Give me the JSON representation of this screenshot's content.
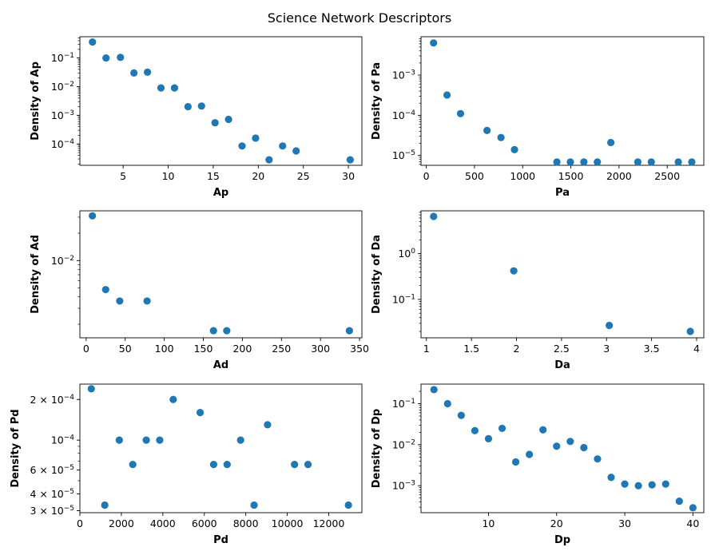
{
  "figure": {
    "title": "Science Network Descriptors"
  },
  "chart_data": [
    {
      "id": "ap",
      "type": "scatter",
      "xlabel": "Ap",
      "ylabel": "Density of Ap",
      "yscale": "log",
      "xlim": [
        0.2,
        31.5
      ],
      "ylim": [
        1.8e-05,
        0.55
      ],
      "xticks": [
        5,
        10,
        15,
        20,
        25,
        30
      ],
      "yticks": [
        {
          "value": 0.1,
          "label": "10^-1"
        },
        {
          "value": 0.01,
          "label": "10^-2"
        },
        {
          "value": 0.001,
          "label": "10^-3"
        },
        {
          "value": 0.0001,
          "label": "10^-4"
        }
      ],
      "x": [
        1.6,
        3.1,
        4.7,
        6.2,
        7.7,
        9.2,
        10.7,
        12.2,
        13.7,
        15.2,
        16.7,
        18.2,
        19.7,
        21.2,
        22.7,
        24.2,
        30.2
      ],
      "y": [
        0.36,
        0.1,
        0.105,
        0.03,
        0.032,
        0.009,
        0.009,
        0.002,
        0.0021,
        0.00055,
        0.00072,
        8.5e-05,
        0.00016,
        2.8e-05,
        8.5e-05,
        5.7e-05,
        2.8e-05
      ]
    },
    {
      "id": "pa",
      "type": "scatter",
      "xlabel": "Pa",
      "ylabel": "Density of Pa",
      "yscale": "log",
      "xlim": [
        -55,
        2880
      ],
      "ylim": [
        5.7e-06,
        0.009
      ],
      "xticks": [
        0,
        500,
        1000,
        1500,
        2000,
        2500
      ],
      "yticks": [
        {
          "value": 0.001,
          "label": "10^-3"
        },
        {
          "value": 0.0001,
          "label": "10^-4"
        },
        {
          "value": 1e-05,
          "label": "10^-5"
        }
      ],
      "x": [
        75,
        215,
        355,
        630,
        775,
        915,
        1355,
        1495,
        1635,
        1775,
        1915,
        2195,
        2335,
        2615,
        2755
      ],
      "y": [
        0.0063,
        0.00032,
        0.00011,
        4.2e-05,
        2.8e-05,
        1.4e-05,
        6.9e-06,
        6.9e-06,
        6.9e-06,
        6.9e-06,
        2.1e-05,
        6.9e-06,
        6.9e-06,
        6.9e-06,
        6.9e-06
      ]
    },
    {
      "id": "ad",
      "type": "scatter",
      "xlabel": "Ad",
      "ylabel": "Density of Ad",
      "yscale": "log",
      "xlim": [
        -8,
        353
      ],
      "ylim": [
        0.00142,
        0.0352
      ],
      "xticks": [
        0,
        50,
        100,
        150,
        200,
        250,
        300,
        350
      ],
      "yticks": [
        {
          "value": 0.01,
          "label": "10^-2"
        }
      ],
      "x": [
        8,
        25,
        43,
        78,
        163,
        180,
        337
      ],
      "y": [
        0.031,
        0.0048,
        0.0036,
        0.0036,
        0.0017,
        0.0017,
        0.0017
      ]
    },
    {
      "id": "da",
      "type": "scatter",
      "xlabel": "Da",
      "ylabel": "Density of Da",
      "yscale": "log",
      "xlim": [
        0.94,
        4.08
      ],
      "ylim": [
        0.0145,
        8.6
      ],
      "xticks": [
        1.0,
        1.5,
        2.0,
        2.5,
        3.0,
        3.5,
        4.0
      ],
      "yticks": [
        {
          "value": 1,
          "label": "10^0"
        },
        {
          "value": 0.1,
          "label": "10^-1"
        }
      ],
      "x": [
        1.08,
        1.97,
        3.03,
        3.93
      ],
      "y": [
        6.5,
        0.42,
        0.027,
        0.02
      ]
    },
    {
      "id": "pd",
      "type": "scatter",
      "xlabel": "Pd",
      "ylabel": "Density of Pd",
      "yscale": "log",
      "xlim": [
        0,
        13600
      ],
      "ylim": [
        2.9e-05,
        0.00026
      ],
      "xticks": [
        0,
        2000,
        4000,
        6000,
        8000,
        10000,
        12000
      ],
      "yticks": [
        {
          "value": 0.0002,
          "label": "2 × 10^-4"
        },
        {
          "value": 0.0001,
          "label": "10^-4"
        },
        {
          "value": 6e-05,
          "label": "6 × 10^-5"
        },
        {
          "value": 4e-05,
          "label": "4 × 10^-5"
        },
        {
          "value": 3e-05,
          "label": "3 × 10^-5"
        }
      ],
      "x": [
        550,
        1200,
        1900,
        2550,
        3200,
        3850,
        4500,
        5800,
        6450,
        7100,
        7750,
        8400,
        9050,
        10350,
        11000,
        12950
      ],
      "y": [
        0.00024,
        3.3e-05,
        0.0001,
        6.6e-05,
        0.0001,
        0.0001,
        0.0002,
        0.00016,
        6.6e-05,
        6.6e-05,
        0.0001,
        3.3e-05,
        0.00013,
        6.6e-05,
        6.6e-05,
        3.3e-05
      ]
    },
    {
      "id": "dp",
      "type": "scatter",
      "xlabel": "Dp",
      "ylabel": "Density of Dp",
      "yscale": "log",
      "xlim": [
        0.1,
        41.6
      ],
      "ylim": [
        0.00022,
        0.3
      ],
      "xticks": [
        10,
        20,
        30,
        40
      ],
      "yticks": [
        {
          "value": 0.1,
          "label": "10^-1"
        },
        {
          "value": 0.01,
          "label": "10^-2"
        },
        {
          "value": 0.001,
          "label": "10^-3"
        }
      ],
      "x": [
        2,
        4,
        6,
        8,
        10,
        12,
        14,
        16,
        18,
        20,
        22,
        24,
        26,
        28,
        30,
        32,
        34,
        36,
        38,
        40
      ],
      "y": [
        0.22,
        0.1,
        0.052,
        0.022,
        0.014,
        0.025,
        0.0038,
        0.0058,
        0.023,
        0.0092,
        0.012,
        0.0085,
        0.0045,
        0.0016,
        0.0011,
        0.001,
        0.00105,
        0.0011,
        0.00042,
        0.00029
      ]
    }
  ]
}
